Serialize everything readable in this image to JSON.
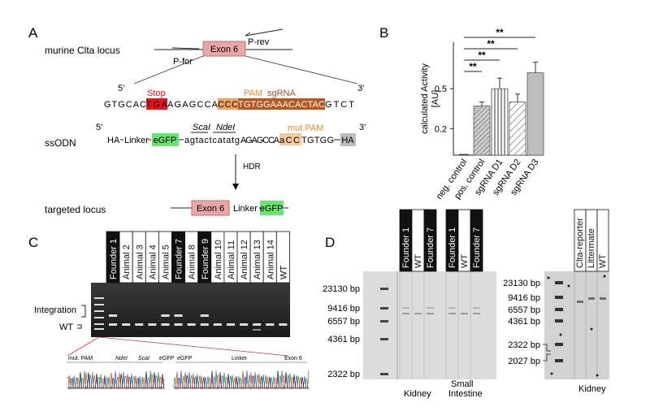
{
  "panelA": {
    "letter": "A",
    "row_murine": "murine Clta locus",
    "exon": "Exon 6",
    "p_rev": "P-rev",
    "p_for": "P-for",
    "five": "5'",
    "three": "3'",
    "stop_label": "Stop",
    "pam_label": "PAM",
    "sgrna_label": "sgRNA",
    "seq": {
      "s1": "GTGCAC",
      "s2": "TGA",
      "s3": "AGAGCCA",
      "s4": "CCC",
      "s5": "TGTGGAAACACTAC",
      "s6": "GTCT"
    },
    "row_ssodn": "ssODN",
    "ssodn": {
      "five": "5'",
      "three": "3'",
      "ha_left": "HA",
      "linker": "Linker",
      "egfp": "eGFP",
      "scai": "ScaI",
      "ndei": "NdeI",
      "lower": "agtactcatatg",
      "mid": "AGAGCCA",
      "mut": "aCC",
      "end": "TGTGG",
      "ha_right": "HA",
      "mut_pam_label": "mut.PAM"
    },
    "hdr": "HDR",
    "row_targeted": "targeted locus",
    "targeted": {
      "exon": "Exon 6",
      "linker": "Linker",
      "egfp": "eGFP"
    }
  },
  "panelB": {
    "letter": "B"
  },
  "chart_data": {
    "type": "bar",
    "categories": [
      "neg. control",
      "pos. control",
      "sgRNA D1",
      "sgRNA D2",
      "sgRNA D3"
    ],
    "values": [
      0.0,
      0.37,
      0.5,
      0.4,
      0.62
    ],
    "errors": [
      0.0,
      0.03,
      0.08,
      0.06,
      0.08
    ],
    "ylabel": "calculated Activity [AU]",
    "yticks": [
      0.2,
      0.5
    ],
    "ylim": [
      0,
      0.85
    ],
    "significance": [
      "**",
      "**",
      "**",
      "**"
    ],
    "patterns": [
      "none",
      "dense-diagonal",
      "vertical",
      "diagonal",
      "solid"
    ]
  },
  "panelC": {
    "letter": "C",
    "lanes": [
      "Founder 1",
      "Animal 2",
      "Animal 3",
      "Animal 4",
      "Animal 5",
      "Founder 7",
      "Animal 8",
      "Founder 9",
      "Animal 10",
      "Animal 11",
      "Animal 12",
      "Animal 13",
      "Animal 14",
      "WT"
    ],
    "integration": "Integration",
    "wt": "WT",
    "seq_labels": [
      "mut. PAM",
      "NdeI",
      "ScaI",
      "eGFP",
      "eGFP",
      "Linker",
      "Exon 6"
    ]
  },
  "panelD": {
    "letter": "D",
    "markers_left": [
      "23130 bp",
      "9416 bp",
      "6557 bp",
      "4361 bp",
      "2322 bp"
    ],
    "kidney_lanes": [
      "Founder 1",
      "WT",
      "Founder 7"
    ],
    "intestine_lanes": [
      "Founder 1",
      "WT",
      "Founder 7"
    ],
    "kidney": "Kidney",
    "small": "Small",
    "intestine": "Intestine",
    "markers_right": [
      "23130 bp",
      "9416 bp",
      "6557 bp",
      "4361 bp",
      "2322 bp",
      "2027 bp"
    ],
    "right_lanes": [
      "Clta-reporter",
      "Littermate",
      "WT"
    ],
    "kidney_right": "Kidney"
  }
}
